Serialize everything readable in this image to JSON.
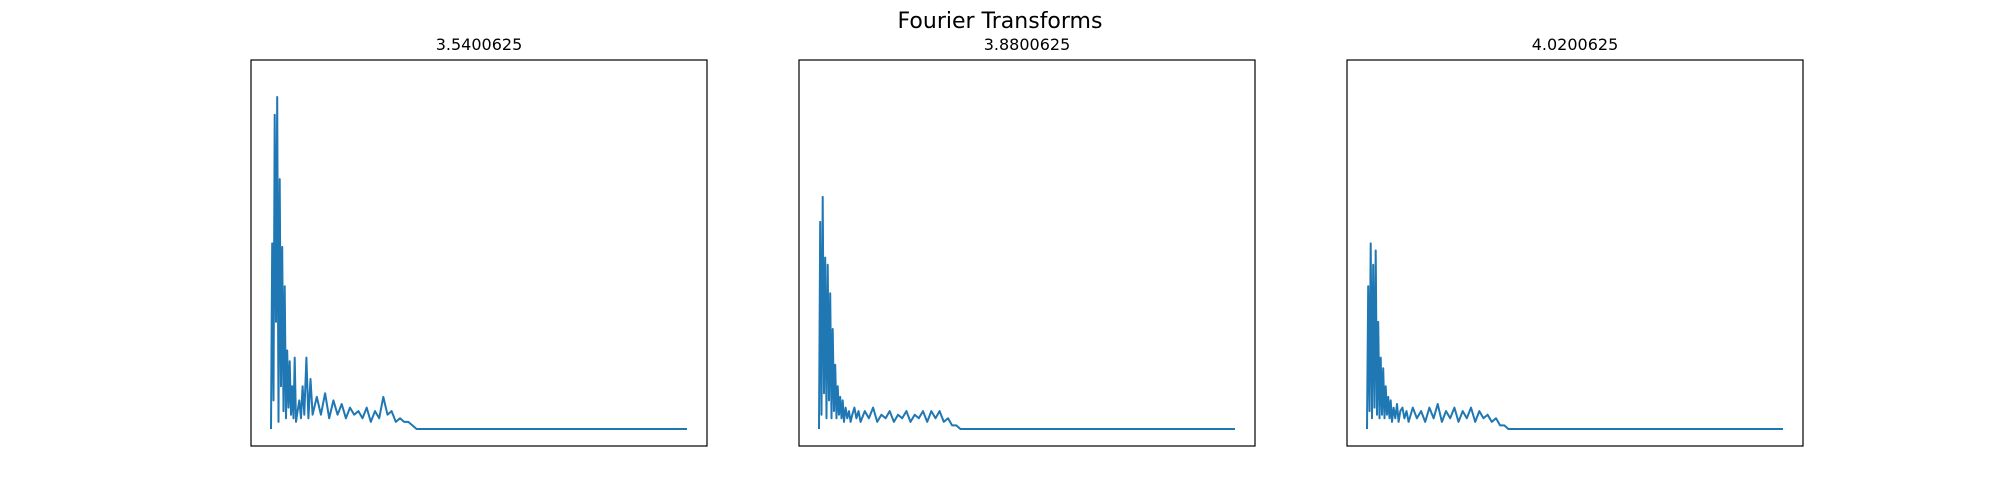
{
  "figure": {
    "title": "Fourier Transforms",
    "line_color": "#1f77b4"
  },
  "chart_data": [
    {
      "type": "line",
      "title": "3.5400625",
      "xlabel": "",
      "ylabel": "",
      "xlim": [
        0,
        100
      ],
      "ylim": [
        0,
        100
      ],
      "grid": false,
      "axis_ticks": false,
      "series": [
        {
          "x": [
            0,
            0.3,
            0.6,
            0.9,
            1.2,
            1.5,
            1.8,
            2.1,
            2.4,
            2.7,
            3.0,
            3.3,
            3.6,
            3.9,
            4.2,
            4.5,
            4.8,
            5.1,
            5.4,
            5.7,
            6.0,
            6.4,
            6.8,
            7.2,
            7.6,
            8.0,
            8.5,
            9.0,
            9.5,
            10.0,
            11.0,
            12.0,
            13.0,
            14.0,
            15.0,
            16.0,
            17.0,
            18.0,
            19.0,
            20.0,
            21.0,
            22.0,
            23.0,
            24.0,
            25.0,
            26.0,
            27.0,
            28.0,
            29.0,
            30.0,
            31.0,
            32.0,
            33.0,
            34.0,
            35.0,
            40,
            60,
            80,
            100
          ],
          "y": [
            0,
            52,
            8,
            88,
            30,
            93,
            2,
            70,
            12,
            51,
            5,
            40,
            3,
            22,
            6,
            19,
            4,
            12,
            3,
            20,
            2,
            5,
            8,
            3,
            12,
            4,
            20,
            3,
            14,
            4,
            9,
            4,
            10,
            3,
            8,
            4,
            7,
            3,
            6,
            4,
            5,
            3,
            6,
            2,
            5,
            3,
            9,
            4,
            5,
            2,
            3,
            2,
            2,
            1,
            0,
            0,
            0,
            0,
            0
          ]
        }
      ]
    },
    {
      "type": "line",
      "title": "3.8800625",
      "xlabel": "",
      "ylabel": "",
      "xlim": [
        0,
        100
      ],
      "ylim": [
        0,
        100
      ],
      "grid": false,
      "axis_ticks": false,
      "series": [
        {
          "x": [
            0,
            0.3,
            0.6,
            0.9,
            1.2,
            1.5,
            1.8,
            2.1,
            2.4,
            2.7,
            3.0,
            3.3,
            3.6,
            3.9,
            4.2,
            4.5,
            4.8,
            5.1,
            5.4,
            5.7,
            6.0,
            6.4,
            6.8,
            7.2,
            7.6,
            8.0,
            8.5,
            9.0,
            9.5,
            10.0,
            11.0,
            12.0,
            13.0,
            14.0,
            15.0,
            16.0,
            17.0,
            18.0,
            19.0,
            20.0,
            21.0,
            22.0,
            23.0,
            24.0,
            25.0,
            26.0,
            27.0,
            28.0,
            29.0,
            30.0,
            31.0,
            32.0,
            33.0,
            34.0,
            35.0,
            40,
            60,
            80,
            100
          ],
          "y": [
            0,
            58,
            4,
            65,
            10,
            48,
            3,
            46,
            8,
            38,
            3,
            28,
            5,
            18,
            3,
            12,
            4,
            9,
            3,
            8,
            2,
            6,
            3,
            5,
            2,
            4,
            6,
            3,
            5,
            2,
            5,
            3,
            6,
            2,
            4,
            3,
            5,
            2,
            4,
            3,
            5,
            2,
            4,
            3,
            5,
            2,
            5,
            3,
            5,
            2,
            3,
            1,
            1,
            0,
            0,
            0,
            0,
            0,
            0
          ]
        }
      ]
    },
    {
      "type": "line",
      "title": "4.0200625",
      "xlabel": "",
      "ylabel": "",
      "xlim": [
        0,
        100
      ],
      "ylim": [
        0,
        100
      ],
      "grid": false,
      "axis_ticks": false,
      "series": [
        {
          "x": [
            0,
            0.3,
            0.6,
            0.9,
            1.2,
            1.5,
            1.8,
            2.1,
            2.4,
            2.7,
            3.0,
            3.3,
            3.6,
            3.9,
            4.2,
            4.5,
            4.8,
            5.1,
            5.4,
            5.7,
            6.0,
            6.4,
            6.8,
            7.2,
            7.6,
            8.0,
            8.5,
            9.0,
            9.5,
            10.0,
            11.0,
            12.0,
            13.0,
            14.0,
            15.0,
            16.0,
            17.0,
            18.0,
            19.0,
            20.0,
            21.0,
            22.0,
            23.0,
            24.0,
            25.0,
            26.0,
            27.0,
            28.0,
            29.0,
            30.0,
            31.0,
            32.0,
            33.0,
            34.0,
            35.0,
            40,
            60,
            80,
            100
          ],
          "y": [
            0,
            40,
            5,
            52,
            3,
            46,
            6,
            50,
            4,
            30,
            3,
            20,
            4,
            17,
            3,
            12,
            4,
            9,
            3,
            8,
            2,
            6,
            3,
            7,
            2,
            5,
            6,
            3,
            5,
            2,
            6,
            3,
            5,
            2,
            6,
            3,
            7,
            2,
            5,
            3,
            6,
            2,
            5,
            3,
            6,
            2,
            5,
            3,
            4,
            2,
            3,
            1,
            1,
            0,
            0,
            0,
            0,
            0,
            0
          ]
        }
      ]
    }
  ]
}
